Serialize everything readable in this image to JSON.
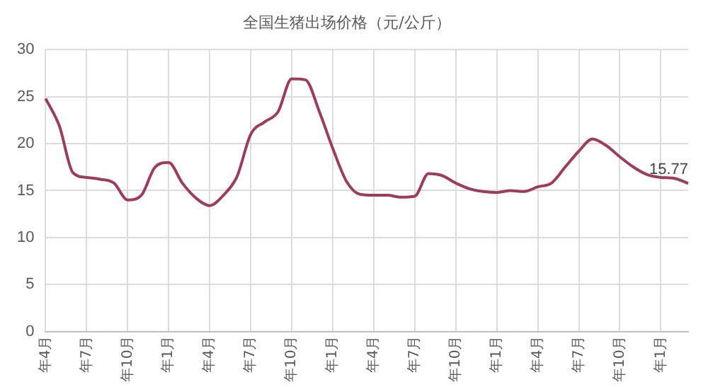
{
  "chart_data": {
    "type": "line",
    "title": "全国生猪出场价格（元/公斤）",
    "categories": [
      "年4月",
      null,
      null,
      "年7月",
      null,
      null,
      "年10月",
      null,
      null,
      "年1月",
      null,
      null,
      "年4月",
      null,
      null,
      "年7月",
      null,
      null,
      "年10月",
      null,
      null,
      "年1月",
      null,
      null,
      "年4月",
      null,
      null,
      "年7月",
      null,
      null,
      "年10月",
      null,
      null,
      "年1月",
      null,
      null,
      "年4月",
      null,
      null,
      "年7月",
      null,
      null,
      "年10月",
      null,
      null,
      "年1月",
      null,
      null
    ],
    "series": [
      {
        "color": "#9c3d5c",
        "values": [
          24.8,
          21.9,
          16.9,
          16.4,
          16.2,
          15.8,
          14.0,
          14.5,
          17.5,
          18,
          15.8,
          14.2,
          13.4,
          14.5,
          16.5,
          21,
          22.3,
          23.4,
          26.9,
          26.8,
          23.5,
          19.5,
          16,
          14.6,
          14.5,
          14.5,
          14.3,
          14.4,
          16.8,
          16.6,
          15.8,
          15.2,
          14.9,
          14.8,
          15,
          14.9,
          15.4,
          15.8,
          17.5,
          19.2,
          20.5,
          19.8,
          18.6,
          17.5,
          16.7,
          16.4,
          16.3,
          15.77
        ],
        "value_labels": [
          null,
          null,
          null,
          null,
          null,
          null,
          null,
          null,
          null,
          null,
          null,
          null,
          null,
          null,
          null,
          null,
          null,
          null,
          null,
          null,
          null,
          null,
          null,
          null,
          null,
          null,
          null,
          null,
          null,
          null,
          null,
          null,
          null,
          null,
          null,
          null,
          null,
          null,
          null,
          null,
          null,
          null,
          null,
          null,
          null,
          null,
          null,
          "15.77"
        ]
      }
    ],
    "ylim": [
      0,
      30
    ],
    "yticks": [
      0,
      5,
      10,
      15,
      20,
      25,
      30
    ],
    "grid": true,
    "legend": false,
    "marker": "none",
    "line_style": "solid"
  }
}
